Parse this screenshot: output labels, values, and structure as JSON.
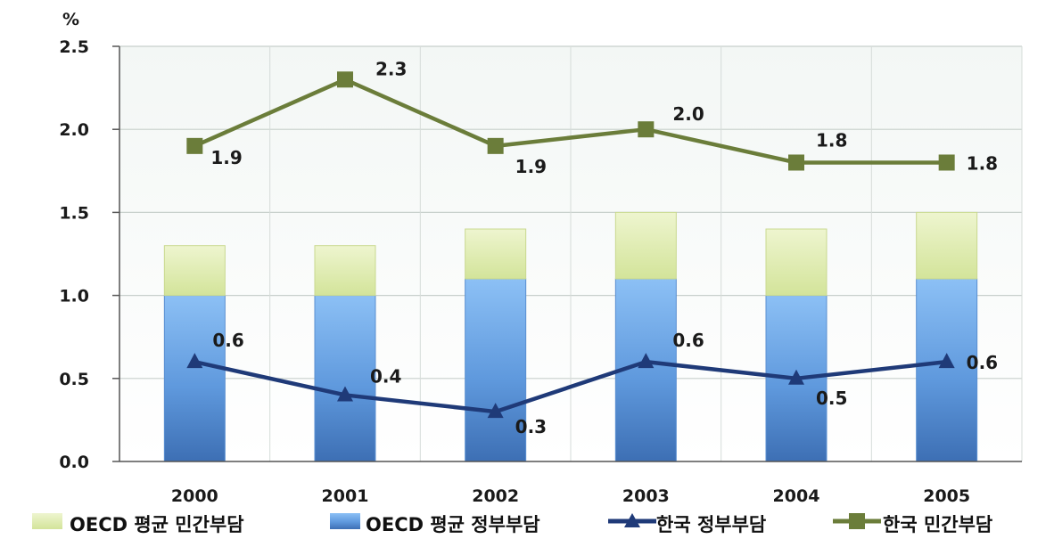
{
  "chart_data": {
    "type": "bar",
    "unit_label": "%",
    "categories": [
      "2000",
      "2001",
      "2002",
      "2003",
      "2004",
      "2005"
    ],
    "ylim": [
      0,
      2.5
    ],
    "yticks": [
      "0.0",
      "0.5",
      "1.0",
      "1.5",
      "2.0",
      "2.5"
    ],
    "grid": true,
    "legend_position": "bottom",
    "series": [
      {
        "name": "OECD 평균 민간부담",
        "kind": "stacked-bar-top",
        "color": "#dce9a8",
        "values": [
          0.3,
          0.3,
          0.3,
          0.4,
          0.4,
          0.4
        ]
      },
      {
        "name": "OECD 평균 정부부담",
        "kind": "stacked-bar-bottom",
        "color": "#5b9be0",
        "values": [
          1.0,
          1.0,
          1.1,
          1.1,
          1.0,
          1.1
        ]
      },
      {
        "name": "한국 정부부담",
        "kind": "line",
        "marker": "triangle",
        "color": "#1f3a78",
        "values": [
          0.6,
          0.4,
          0.3,
          0.6,
          0.5,
          0.6
        ],
        "labels": [
          "0.6",
          "0.4",
          "0.3",
          "0.6",
          "0.5",
          "0.6"
        ]
      },
      {
        "name": "한국 민간부담",
        "kind": "line",
        "marker": "square",
        "color": "#6b7d3a",
        "values": [
          1.9,
          2.3,
          1.9,
          2.0,
          1.8,
          1.8
        ],
        "labels": [
          "1.9",
          "2.3",
          "1.9",
          "2.0",
          "1.8",
          "1.8"
        ]
      }
    ]
  }
}
